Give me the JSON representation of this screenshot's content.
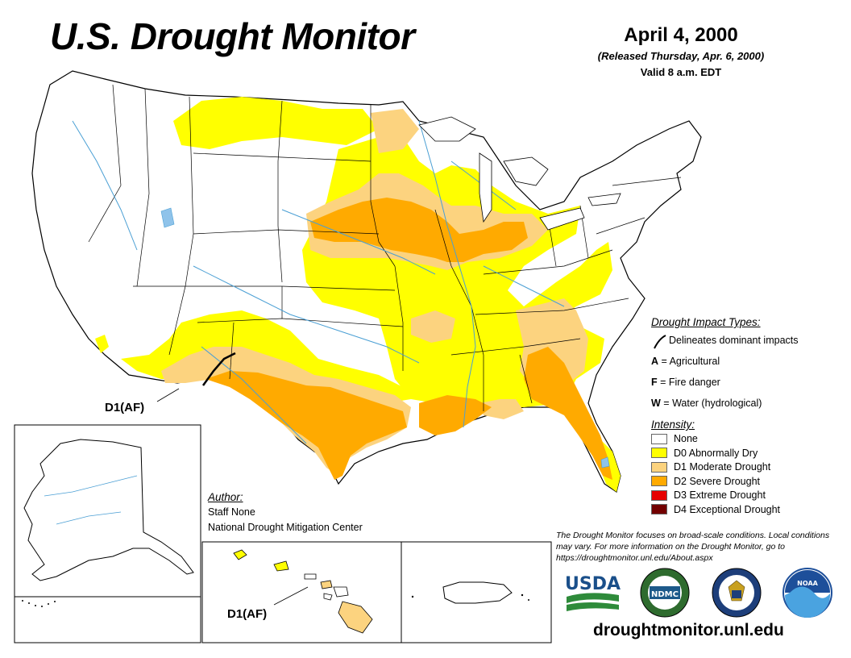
{
  "title": "U.S. Drought Monitor",
  "date": "April 4, 2000",
  "released": "(Released Thursday, Apr. 6, 2000)",
  "valid": "Valid 8 a.m. EDT",
  "map_labels": {
    "conus_d1_label": "D1(AF)",
    "hawaii_d1_label": "D1(AF)"
  },
  "legend": {
    "impact_heading": "Drought Impact Types:",
    "impact_line_label": "Delineates dominant impacts",
    "impact_types": [
      {
        "letter": "A",
        "text": "= Agricultural"
      },
      {
        "letter": "F",
        "text": "= Fire danger"
      },
      {
        "letter": "W",
        "text": "= Water (hydrological)"
      }
    ],
    "intensity_heading": "Intensity:",
    "intensity": [
      {
        "label": "None",
        "color": "#ffffff"
      },
      {
        "label": "D0 Abnormally Dry",
        "color": "#ffff00"
      },
      {
        "label": "D1 Moderate Drought",
        "color": "#fcd37f"
      },
      {
        "label": "D2 Severe Drought",
        "color": "#ffaa00"
      },
      {
        "label": "D3 Extreme Drought",
        "color": "#e60000"
      },
      {
        "label": "D4 Exceptional Drought",
        "color": "#730000"
      }
    ]
  },
  "author": {
    "heading": "Author:",
    "name": "Staff None",
    "org": "National Drought Mitigation Center"
  },
  "note": "The Drought Monitor focuses on broad-scale conditions. Local conditions may vary. For more information on the Drought Monitor, go to https://droughtmonitor.unl.edu/About.aspx",
  "logos": {
    "usda": "USDA",
    "ndmc": "NDMC",
    "noaa": "NOAA"
  },
  "url": "droughtmonitor.unl.edu",
  "colors": {
    "river": "#4a9fd4",
    "lake": "#8fc3ea",
    "border": "#000000"
  }
}
